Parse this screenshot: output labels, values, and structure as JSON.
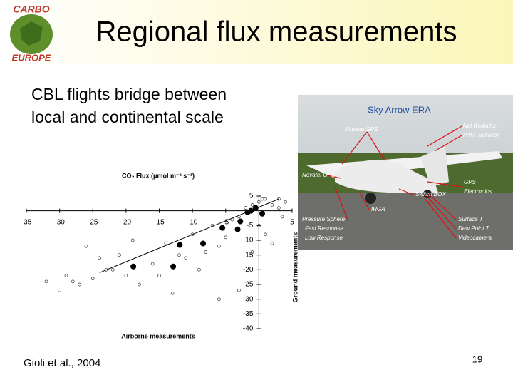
{
  "logo": {
    "top": "CARBO",
    "bottom": "EUROPE"
  },
  "header": {
    "title": "Regional flux measurements"
  },
  "body": {
    "lines": [
      "CBL flights bridge between",
      "local and continental scale"
    ]
  },
  "chart_data": {
    "type": "scatter",
    "title": "CO₂ Flux (μmol m⁻² s⁻¹)",
    "x_label": "Airborne measurements",
    "y_label": "Ground measurements",
    "xlim": [
      -35,
      5
    ],
    "ylim": [
      -40,
      5
    ],
    "xticks": [
      -35,
      -30,
      -25,
      -20,
      -15,
      -10,
      -5,
      5
    ],
    "yticks": [
      5,
      -5,
      -10,
      -15,
      -20,
      -25,
      -30,
      -35,
      -40
    ],
    "open_points": {
      "x": [
        -25,
        -27,
        -28,
        -30,
        -20,
        -22,
        -24,
        -26,
        -21,
        -18,
        -16,
        -15,
        -14,
        -13,
        -12,
        -10,
        -9,
        -8,
        -7,
        -6,
        -5,
        -4,
        -3,
        -2,
        -1,
        0,
        1,
        2,
        3,
        4,
        3.5,
        2,
        1,
        0,
        -1,
        -3,
        -6,
        -11,
        -19,
        -23,
        -32,
        -29,
        0.5,
        3
      ],
      "y": [
        -23,
        -25,
        -24,
        -27,
        -22,
        -20,
        -16,
        -12,
        -15,
        -25,
        -18,
        -22,
        -11,
        -28,
        -15,
        -8,
        -20,
        -14,
        -5,
        -12,
        -9,
        -3,
        -2,
        1,
        2,
        3,
        4,
        2,
        1,
        3,
        -2,
        -11,
        -8,
        -5,
        -14,
        -27,
        -30,
        -16,
        -10,
        -20,
        -24,
        -22,
        4,
        4
      ]
    },
    "filled_points": {
      "x": [
        -18.9,
        -12.9,
        -11.9,
        -8.4,
        -5.5,
        -2.8,
        -3.2,
        -1.7,
        -1.2,
        -0.5,
        0.5
      ],
      "y": [
        -18.9,
        -18.9,
        -11.6,
        -11.1,
        -5.8,
        -3.6,
        -6.3,
        -0.5,
        0,
        1,
        -1
      ]
    },
    "fit_line": {
      "x": [
        -24,
        3
      ],
      "y": [
        -21,
        4
      ]
    }
  },
  "photo": {
    "title": "Sky Arrow ERA",
    "labels": [
      "Attitude GPS",
      "Net Radiation",
      "PAR Radiation",
      "Novatel GPS",
      "GPS",
      "Electronics",
      "Switch BOX",
      "IRGA",
      "Pressure Sphere",
      "Fast Response",
      "Low Response",
      "Surface T",
      "Dew Point T",
      "Videocamera"
    ]
  },
  "footer": {
    "citation": "Gioli et al., 2004",
    "page": "19"
  }
}
